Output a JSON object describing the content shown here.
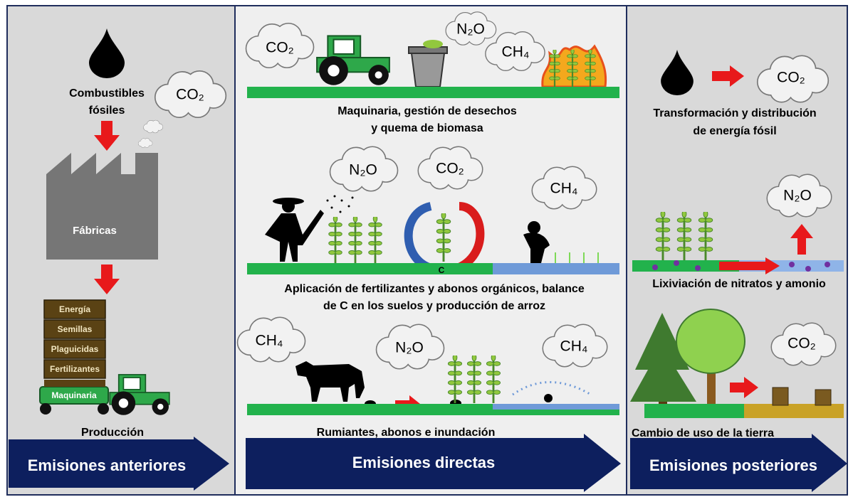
{
  "left": {
    "fuel": [
      "Combustibles",
      "fósiles"
    ],
    "gas": "CO₂",
    "factory": "Fábricas",
    "inputs": [
      "Energía",
      "Semillas",
      "Plaguicidas",
      "Fertilizantes",
      "Maquinaria"
    ],
    "caption": "Producción",
    "arrow": "Emisiones anteriores"
  },
  "middle": {
    "row1": {
      "gases": [
        "CO₂",
        "N₂O",
        "CH₄"
      ],
      "caption": [
        "Maquinaria, gestión de desechos",
        "y quema de biomasa"
      ]
    },
    "row2": {
      "gases": [
        "N₂O",
        "CO₂",
        "CH₄"
      ],
      "carbon": "C",
      "caption": [
        "Aplicación de fertilizantes y abonos orgánicos, balance",
        "de C en los suelos y producción de arroz"
      ]
    },
    "row3": {
      "gases": [
        "CH₄",
        "N₂O",
        "CH₄"
      ],
      "caption": "Rumiantes, abonos e inundación"
    },
    "arrow": "Emisiones directas"
  },
  "right": {
    "row1": {
      "gas": "CO₂",
      "caption": [
        "Transformación y distribución",
        "de energía fósil"
      ]
    },
    "row2": {
      "gas": "N₂O",
      "caption": "Lixiviación de nitratos y amonio"
    },
    "row3": {
      "gas": "CO₂",
      "caption": "Cambio de uso de la tierra"
    },
    "arrow": "Emisiones posteriores"
  }
}
